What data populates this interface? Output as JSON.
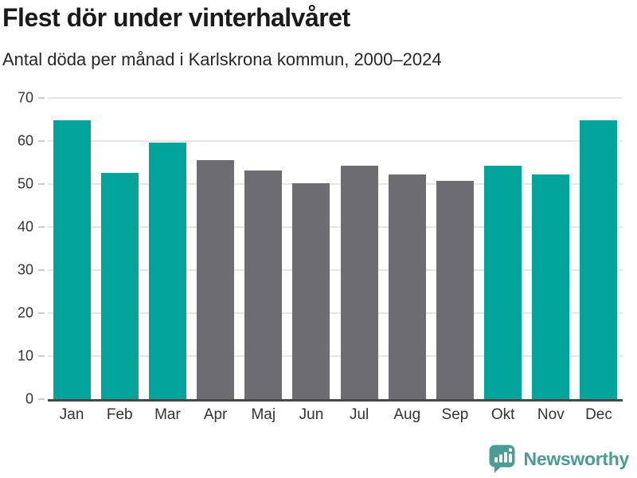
{
  "header": {
    "title": "Flest dör under vinterhalvåret",
    "subtitle": "Antal döda per månad i Karlskrona kommun, 2000–2024"
  },
  "chart_data": {
    "type": "bar",
    "title": "Flest dör under vinterhalvåret",
    "subtitle": "Antal döda per månad i Karlskrona kommun, 2000–2024",
    "categories": [
      "Jan",
      "Feb",
      "Mar",
      "Apr",
      "Maj",
      "Jun",
      "Jul",
      "Aug",
      "Sep",
      "Okt",
      "Nov",
      "Dec"
    ],
    "values": [
      64.8,
      52.6,
      59.7,
      55.6,
      53.2,
      50.2,
      54.3,
      52.3,
      50.7,
      54.2,
      52.3,
      64.8
    ],
    "bar_roles": [
      "winter",
      "winter",
      "winter",
      "summer",
      "summer",
      "summer",
      "summer",
      "summer",
      "summer",
      "winter",
      "winter",
      "winter"
    ],
    "winter_color": "#00a49b",
    "summer_color": "#6d6d71",
    "xlabel": "",
    "ylabel": "",
    "ylim": [
      0,
      70
    ],
    "yticks": [
      0,
      10,
      20,
      30,
      40,
      50,
      60,
      70
    ],
    "grid": true,
    "legend": false,
    "gridline_color": "#e6e6e6",
    "axis_line_color": "#474747"
  },
  "footer": {
    "brand": "Newsworthy",
    "brand_color": "#4a9c94",
    "logo_icon": "speech-bubble-bar-chart"
  }
}
